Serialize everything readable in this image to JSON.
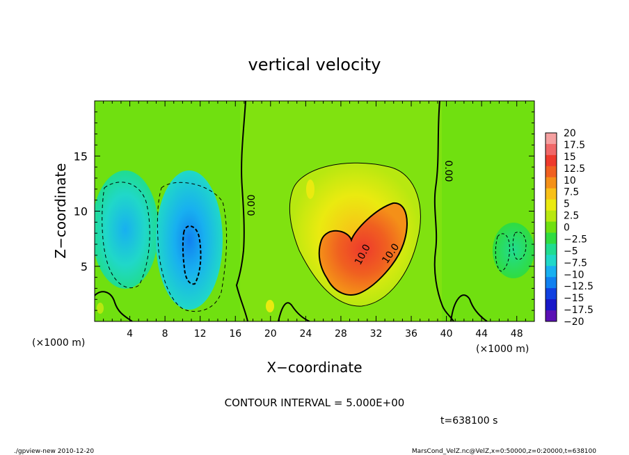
{
  "chart_data": {
    "type": "heatmap",
    "title": "vertical velocity",
    "xlabel": "X−coordinate",
    "ylabel": "Z−coordinate",
    "x_unit_left": "(×1000 m)",
    "x_unit_right": "(×1000 m)",
    "xlim": [
      0,
      50
    ],
    "ylim": [
      0,
      20
    ],
    "x_ticks": [
      "4",
      "8",
      "12",
      "16",
      "20",
      "24",
      "28",
      "32",
      "36",
      "40",
      "44",
      "48"
    ],
    "x_tick_values": [
      4,
      8,
      12,
      16,
      20,
      24,
      28,
      32,
      36,
      40,
      44,
      48
    ],
    "y_ticks": [
      "5",
      "10",
      "15"
    ],
    "y_tick_values": [
      5,
      10,
      15
    ],
    "colorbar": {
      "labels": [
        "20",
        "17.5",
        "15",
        "12.5",
        "10",
        "7.5",
        "5",
        "2.5",
        "0",
        "−2.5",
        "−5",
        "−7.5",
        "−10",
        "−12.5",
        "−15",
        "−17.5",
        "−20"
      ],
      "levels": [
        20,
        17.5,
        15,
        12.5,
        10,
        7.5,
        5,
        2.5,
        0,
        -2.5,
        -5,
        -7.5,
        -10,
        -12.5,
        -15,
        -17.5,
        -20
      ],
      "colors": [
        "#f5a0a0",
        "#f06868",
        "#ee3a2c",
        "#f06020",
        "#f49018",
        "#f8c018",
        "#eaea10",
        "#b8e810",
        "#70e010",
        "#30dc40",
        "#20dc90",
        "#20d8c8",
        "#18b0f0",
        "#1080f0",
        "#1040e0",
        "#1818c8",
        "#5a10b4"
      ]
    },
    "contour_labels": [
      "0.00",
      "0.00",
      "10.0",
      "10.0"
    ],
    "features": [
      {
        "kind": "updraft",
        "x": 30,
        "z": 7,
        "max": 12.5
      },
      {
        "kind": "downdraft",
        "x": 11,
        "z": 7,
        "min": -10
      },
      {
        "kind": "downdraft",
        "x": 3,
        "z": 10,
        "min": -7.5
      }
    ],
    "contour_interval": "CONTOUR INTERVAL = 5.000E+00",
    "time_label": "t=638100  s"
  },
  "footer": {
    "left": "./gpview-new   2010-12-20",
    "right": "MarsCond_VelZ.nc@VelZ,x=0:50000,z=0:20000,t=638100"
  }
}
